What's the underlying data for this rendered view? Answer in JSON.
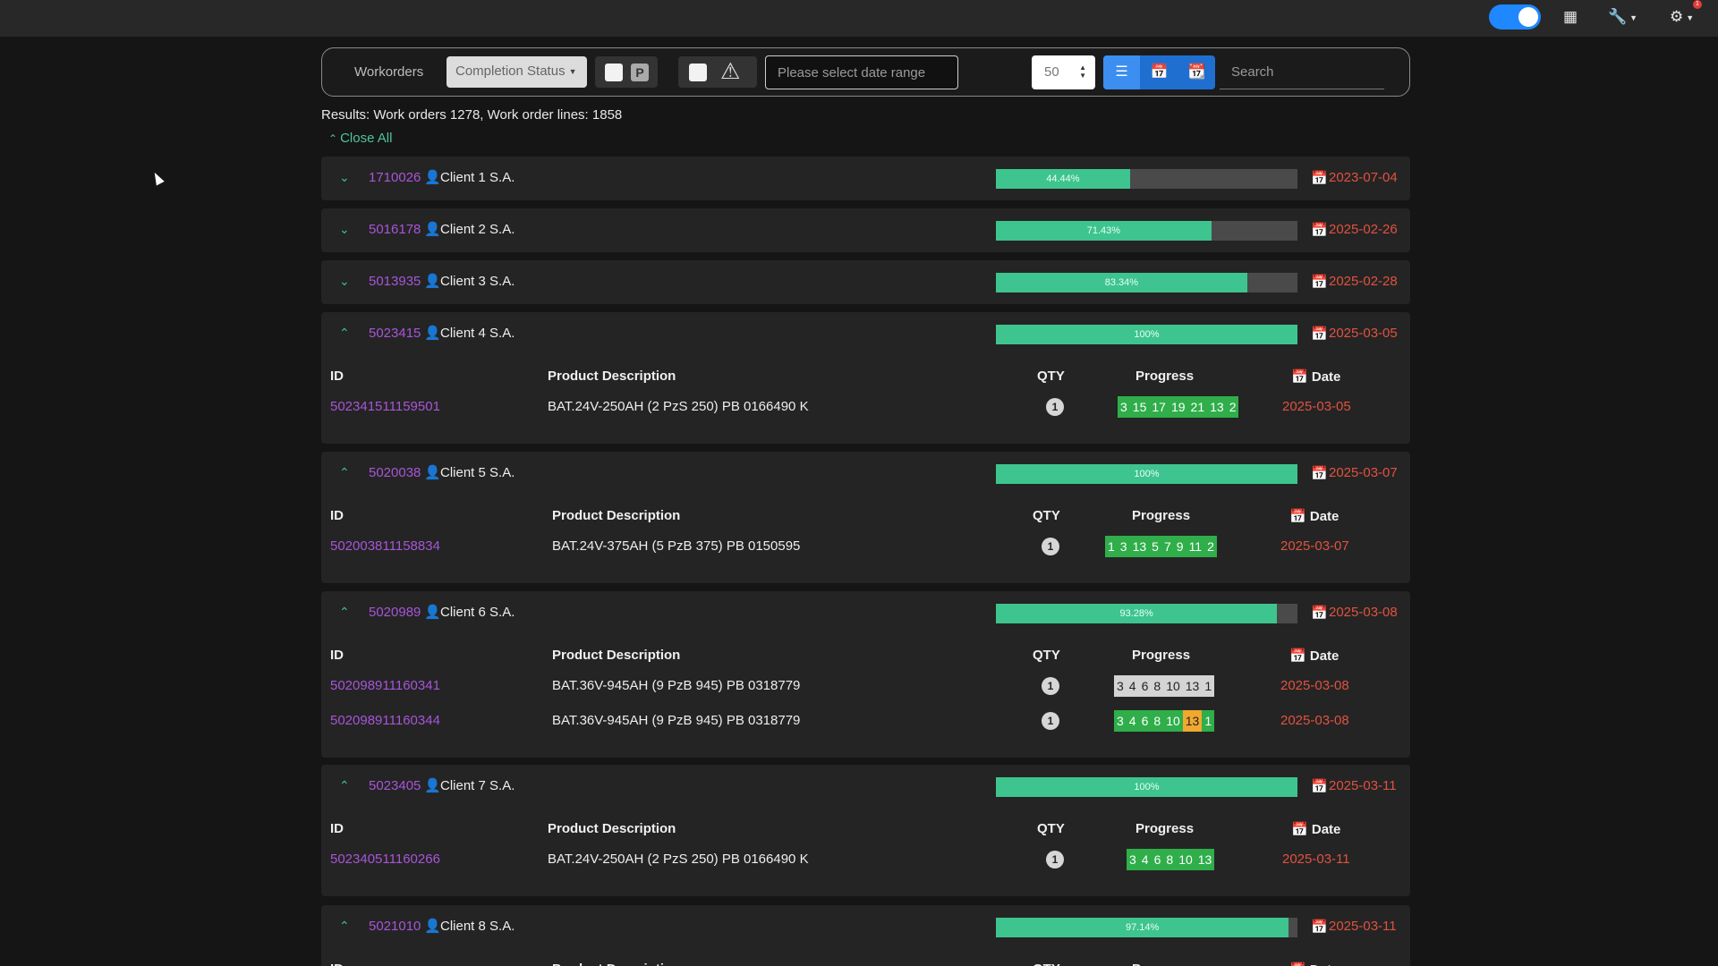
{
  "nav": {
    "toggle_on": true,
    "icons": [
      "grid-icon",
      "wrench-icon",
      "gears-icon"
    ],
    "badge": "1"
  },
  "filters": {
    "workorders_label": "Workorders",
    "completion_status": "Completion Status",
    "p_label": "P",
    "date_placeholder": "Please select date range",
    "page_size": "50",
    "search_placeholder": "Search"
  },
  "results_text": "Results: Work orders 1278, Work order lines: 1858",
  "close_all": "Close All",
  "columns": {
    "id": "ID",
    "description": "Product Description",
    "qty": "QTY",
    "progress": "Progress",
    "date": "Date"
  },
  "orders": [
    {
      "id": "1710026",
      "client": "Client 1 S.A.",
      "progress": 44.44,
      "progress_label": "44.44%",
      "date": "2023-07-04",
      "expanded": false,
      "lines": []
    },
    {
      "id": "5016178",
      "client": "Client 2 S.A.",
      "progress": 71.43,
      "progress_label": "71.43%",
      "date": "2025-02-26",
      "expanded": false,
      "lines": []
    },
    {
      "id": "5013935",
      "client": "Client 3 S.A.",
      "progress": 83.34,
      "progress_label": "83.34%",
      "date": "2025-02-28",
      "expanded": false,
      "lines": []
    },
    {
      "id": "5023415",
      "client": "Client 4 S.A.",
      "progress": 100,
      "progress_label": "100%",
      "date": "2025-03-05",
      "expanded": true,
      "lines": [
        {
          "id": "502341511159501",
          "description": "BAT.24V-250AH (2 PzS 250) PB 0166490 K",
          "qty": "1",
          "date": "2025-03-05",
          "steps": [
            [
              "3",
              "done"
            ],
            [
              "15",
              "done"
            ],
            [
              "17",
              "done"
            ],
            [
              "19",
              "done"
            ],
            [
              "21",
              "done"
            ],
            [
              "13",
              "done"
            ],
            [
              "2",
              "done"
            ]
          ]
        }
      ]
    },
    {
      "id": "5020038",
      "client": "Client 5 S.A.",
      "progress": 100,
      "progress_label": "100%",
      "date": "2025-03-07",
      "expanded": true,
      "lines": [
        {
          "id": "502003811158834",
          "description": "BAT.24V-375AH (5 PzB 375) PB 0150595",
          "qty": "1",
          "date": "2025-03-07",
          "steps": [
            [
              "1",
              "done"
            ],
            [
              "3",
              "done"
            ],
            [
              "13",
              "done"
            ],
            [
              "5",
              "done"
            ],
            [
              "7",
              "done"
            ],
            [
              "9",
              "done"
            ],
            [
              "11",
              "done"
            ],
            [
              "2",
              "done"
            ]
          ]
        }
      ]
    },
    {
      "id": "5020989",
      "client": "Client 6 S.A.",
      "progress": 93.28,
      "progress_label": "93.28%",
      "date": "2025-03-08",
      "expanded": true,
      "lines": [
        {
          "id": "502098911160341",
          "description": "BAT.36V-945AH (9 PzB 945) PB 0318779",
          "qty": "1",
          "date": "2025-03-08",
          "steps": [
            [
              "3",
              "pending"
            ],
            [
              "4",
              "pending"
            ],
            [
              "6",
              "pending"
            ],
            [
              "8",
              "pending"
            ],
            [
              "10",
              "pending"
            ],
            [
              "13",
              "pending"
            ],
            [
              "1",
              "pending"
            ]
          ]
        },
        {
          "id": "502098911160344",
          "description": "BAT.36V-945AH (9 PzB 945) PB 0318779",
          "qty": "1",
          "date": "2025-03-08",
          "steps": [
            [
              "3",
              "done"
            ],
            [
              "4",
              "done"
            ],
            [
              "6",
              "done"
            ],
            [
              "8",
              "done"
            ],
            [
              "10",
              "done"
            ],
            [
              "13",
              "active"
            ],
            [
              "1",
              "done"
            ]
          ]
        }
      ]
    },
    {
      "id": "5023405",
      "client": "Client 7 S.A.",
      "progress": 100,
      "progress_label": "100%",
      "date": "2025-03-11",
      "expanded": true,
      "lines": [
        {
          "id": "502340511160266",
          "description": "BAT.24V-250AH (2 PzS 250) PB 0166490 K",
          "qty": "1",
          "date": "2025-03-11",
          "steps": [
            [
              "3",
              "done"
            ],
            [
              "4",
              "done"
            ],
            [
              "6",
              "done"
            ],
            [
              "8",
              "done"
            ],
            [
              "10",
              "done"
            ],
            [
              "13",
              "done"
            ]
          ]
        }
      ]
    },
    {
      "id": "5021010",
      "client": "Client 8 S.A.",
      "progress": 97.14,
      "progress_label": "97.14%",
      "date": "2025-03-11",
      "expanded": true,
      "lines": []
    }
  ],
  "colors": {
    "accent_green": "#3ec48e",
    "link_purple": "#a855d8",
    "date_red": "#e0523f",
    "primary_blue": "#1f87ff"
  }
}
